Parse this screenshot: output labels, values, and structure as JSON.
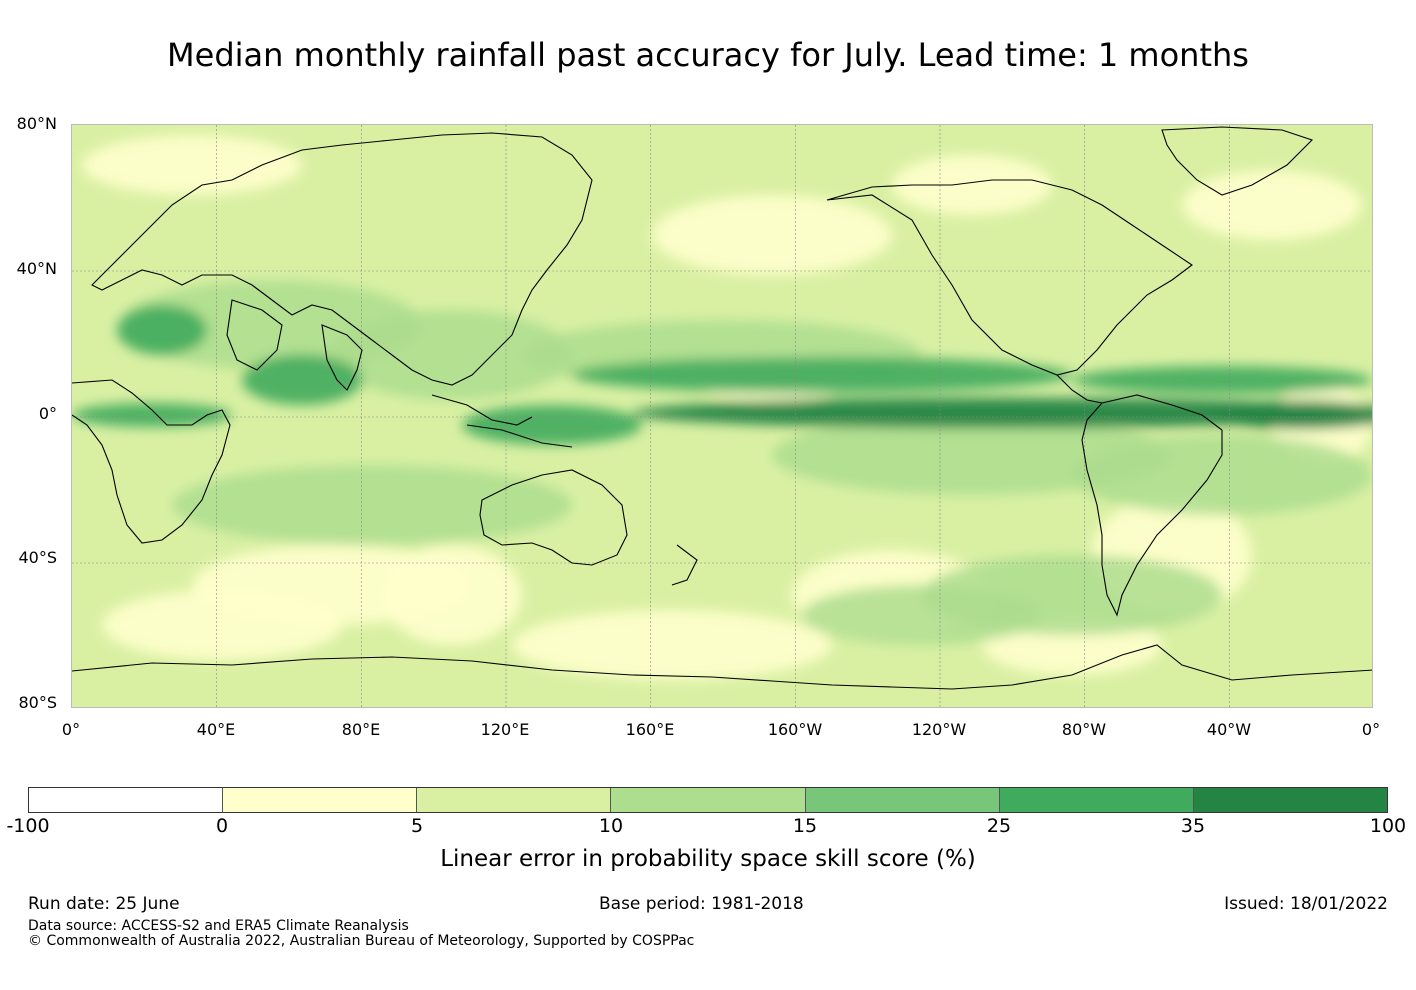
{
  "title": "Median monthly rainfall past accuracy for July. Lead time: 1 months",
  "map": {
    "lat_labels": [
      "80°N",
      "40°N",
      "0°",
      "40°S",
      "80°S"
    ],
    "lon_labels": [
      "0°",
      "40°E",
      "80°E",
      "120°E",
      "160°E",
      "160°W",
      "120°W",
      "80°W",
      "40°W",
      "0°"
    ]
  },
  "colorbar": {
    "colors": [
      "#ffffff",
      "#ffffcc",
      "#d9f0a3",
      "#addd8e",
      "#78c679",
      "#41ab5d",
      "#238443"
    ],
    "ticks": [
      "-100",
      "0",
      "5",
      "10",
      "15",
      "25",
      "35",
      "100"
    ],
    "label": "Linear error in probability space skill score (%)"
  },
  "footer": {
    "run_date": "Run date: 25 June",
    "base_period": "Base period: 1981-2018",
    "issued": "Issued: 18/01/2022",
    "data_source": "Data source: ACCESS-S2 and ERA5 Climate Reanalysis",
    "copyright": "© Commonwealth of Australia 2022, Australian Bureau of Meteorology, Supported by COSPPac"
  }
}
